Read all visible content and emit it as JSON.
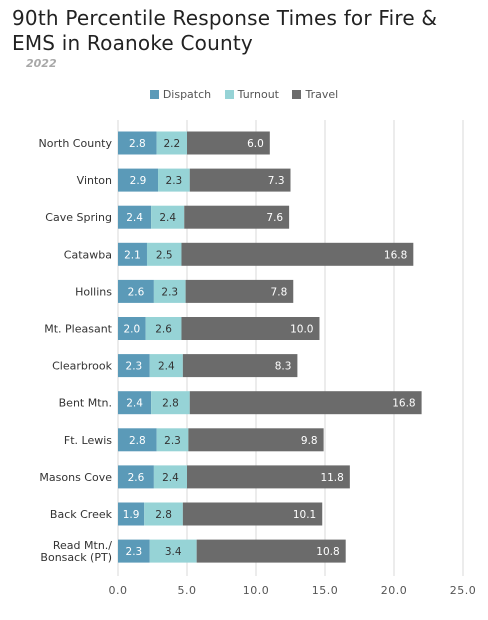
{
  "chart_data": {
    "type": "bar",
    "orientation": "horizontal",
    "stacked": true,
    "title": "90th Percentile Response Times for Fire & EMS in Roanoke County",
    "subtitle": "2022",
    "categories": [
      "North County",
      "Vinton",
      "Cave Spring",
      "Catawba",
      "Hollins",
      "Mt. Pleasant",
      "Clearbrook",
      "Bent Mtn.",
      "Ft. Lewis",
      "Masons Cove",
      "Back Creek",
      "Read Mtn./ Bonsack (PT)"
    ],
    "category_lines": [
      [
        "North County"
      ],
      [
        "Vinton"
      ],
      [
        "Cave Spring"
      ],
      [
        "Catawba"
      ],
      [
        "Hollins"
      ],
      [
        "Mt. Pleasant"
      ],
      [
        "Clearbrook"
      ],
      [
        "Bent Mtn."
      ],
      [
        "Ft. Lewis"
      ],
      [
        "Masons Cove"
      ],
      [
        "Back Creek"
      ],
      [
        "Read Mtn./",
        "Bonsack (PT)"
      ]
    ],
    "series": [
      {
        "name": "Dispatch",
        "color": "#5b9ab8",
        "label_color": "#ffffff",
        "values": [
          2.8,
          2.9,
          2.4,
          2.1,
          2.6,
          2.0,
          2.3,
          2.4,
          2.8,
          2.6,
          1.9,
          2.3
        ]
      },
      {
        "name": "Turnout",
        "color": "#96d3d6",
        "label_color": "#333333",
        "values": [
          2.2,
          2.3,
          2.4,
          2.5,
          2.3,
          2.6,
          2.4,
          2.8,
          2.3,
          2.4,
          2.8,
          3.4
        ]
      },
      {
        "name": "Travel",
        "color": "#6b6b6b",
        "label_color": "#ffffff",
        "values": [
          6.0,
          7.3,
          7.6,
          16.8,
          7.8,
          10.0,
          8.3,
          16.8,
          9.8,
          11.8,
          10.1,
          10.8
        ]
      }
    ],
    "xlim": [
      0,
      25
    ],
    "xticks": [
      "0.0",
      "5.0",
      "10.0",
      "15.0",
      "20.0",
      "25.0"
    ],
    "grid": true,
    "legend_position": "top-center"
  }
}
